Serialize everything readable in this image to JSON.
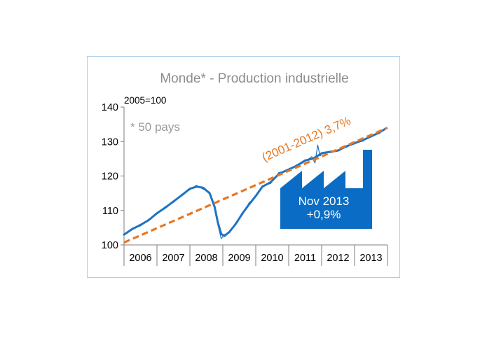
{
  "chart_data": {
    "type": "line",
    "title": "Monde* - Production industrielle",
    "base_note": "2005=100",
    "footnote": "* 50 pays",
    "ylim": [
      100,
      140
    ],
    "yticks": [
      100,
      110,
      120,
      130,
      140
    ],
    "xlim": [
      2006,
      2014
    ],
    "categories": [
      "2006",
      "2007",
      "2008",
      "2009",
      "2010",
      "2011",
      "2012",
      "2013"
    ],
    "grid": false,
    "series": [
      {
        "values_kind": "monthly index, smoothed",
        "color": "#1f73c4",
        "points": [
          [
            2006.0,
            103.0
          ],
          [
            2006.25,
            104.6
          ],
          [
            2006.5,
            105.8
          ],
          [
            2006.75,
            107.2
          ],
          [
            2007.0,
            109.2
          ],
          [
            2007.25,
            110.8
          ],
          [
            2007.5,
            112.6
          ],
          [
            2007.75,
            114.4
          ],
          [
            2008.0,
            116.3
          ],
          [
            2008.2,
            116.9
          ],
          [
            2008.4,
            116.6
          ],
          [
            2008.6,
            115.0
          ],
          [
            2008.75,
            111.0
          ],
          [
            2008.85,
            106.5
          ],
          [
            2008.95,
            103.2
          ],
          [
            2009.05,
            102.6
          ],
          [
            2009.2,
            103.8
          ],
          [
            2009.4,
            106.2
          ],
          [
            2009.6,
            109.2
          ],
          [
            2009.8,
            111.8
          ],
          [
            2010.0,
            114.2
          ],
          [
            2010.2,
            116.9
          ],
          [
            2010.45,
            118.2
          ],
          [
            2010.7,
            120.6
          ],
          [
            2011.0,
            121.9
          ],
          [
            2011.25,
            123.0
          ],
          [
            2011.5,
            124.5
          ],
          [
            2011.75,
            125.1
          ],
          [
            2012.0,
            126.6
          ],
          [
            2012.25,
            127.0
          ],
          [
            2012.5,
            127.4
          ],
          [
            2012.75,
            128.6
          ],
          [
            2013.0,
            129.5
          ],
          [
            2013.25,
            130.4
          ],
          [
            2013.5,
            131.5
          ],
          [
            2013.75,
            132.6
          ],
          [
            2013.92,
            133.6
          ]
        ]
      },
      {
        "values_kind": "monthly index, raw",
        "color": "#1f73c4",
        "points": [
          [
            2006.0,
            102.8
          ],
          [
            2006.25,
            104.9
          ],
          [
            2006.5,
            105.5
          ],
          [
            2006.75,
            107.5
          ],
          [
            2007.0,
            109.0
          ],
          [
            2007.25,
            111.1
          ],
          [
            2007.5,
            112.3
          ],
          [
            2007.75,
            114.7
          ],
          [
            2008.0,
            116.0
          ],
          [
            2008.2,
            117.3
          ],
          [
            2008.4,
            116.2
          ],
          [
            2008.6,
            115.3
          ],
          [
            2008.75,
            110.5
          ],
          [
            2008.85,
            105.8
          ],
          [
            2008.95,
            101.8
          ],
          [
            2009.05,
            103.0
          ],
          [
            2009.2,
            103.5
          ],
          [
            2009.4,
            106.6
          ],
          [
            2009.6,
            108.8
          ],
          [
            2009.8,
            112.3
          ],
          [
            2010.0,
            113.9
          ],
          [
            2010.2,
            117.2
          ],
          [
            2010.45,
            117.8
          ],
          [
            2010.7,
            121.0
          ],
          [
            2011.0,
            121.6
          ],
          [
            2011.25,
            123.3
          ],
          [
            2011.5,
            124.2
          ],
          [
            2011.7,
            125.6
          ],
          [
            2011.8,
            123.8
          ],
          [
            2011.88,
            129.0
          ],
          [
            2011.95,
            125.8
          ],
          [
            2012.05,
            126.9
          ],
          [
            2012.25,
            126.8
          ],
          [
            2012.5,
            127.6
          ],
          [
            2012.75,
            128.3
          ],
          [
            2013.0,
            129.8
          ],
          [
            2013.25,
            130.1
          ],
          [
            2013.5,
            131.8
          ],
          [
            2013.75,
            132.3
          ],
          [
            2013.92,
            133.8
          ]
        ]
      }
    ],
    "trend": {
      "label": "(2001-2012) 3,7%",
      "color": "#e87722",
      "start": [
        2006.0,
        100.7
      ],
      "end": [
        2014.0,
        134.0
      ]
    },
    "callout": {
      "line1": "Nov 2013",
      "line2": "+0,9%",
      "color": "#0a6cc4"
    }
  }
}
